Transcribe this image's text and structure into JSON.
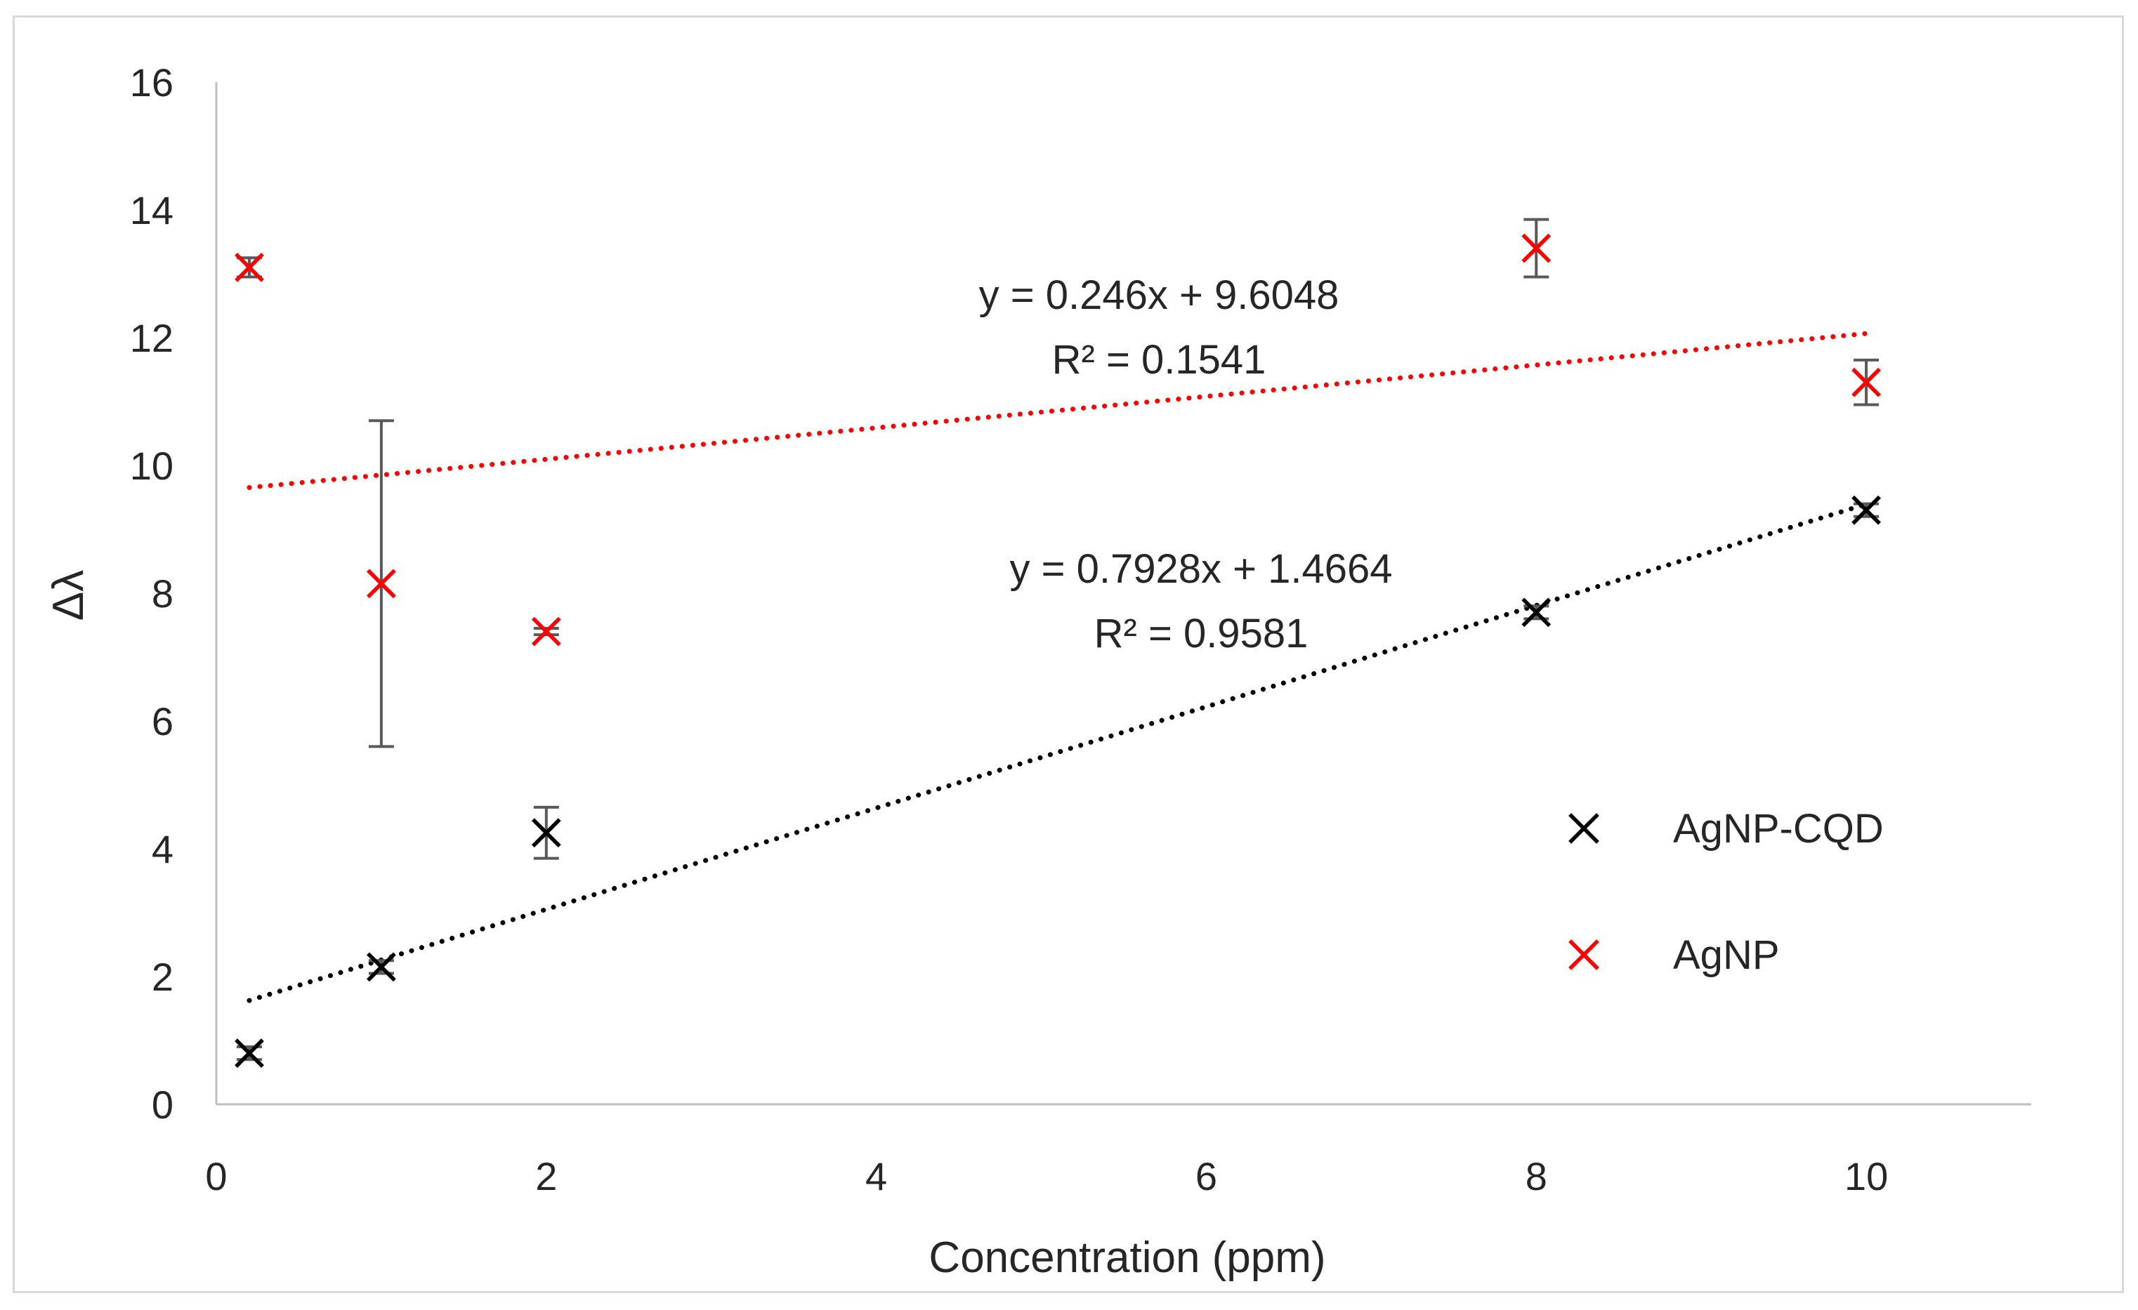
{
  "chart_data": {
    "type": "scatter",
    "title": "",
    "xlabel": "Concentration (ppm)",
    "ylabel": "Δλ",
    "xlim": [
      0,
      11
    ],
    "ylim": [
      0,
      16
    ],
    "xticks": [
      0,
      2,
      4,
      6,
      8,
      10
    ],
    "yticks": [
      0,
      2,
      4,
      6,
      8,
      10,
      12,
      14,
      16
    ],
    "grid": false,
    "legend_position": "right",
    "series": [
      {
        "name": "AgNP-CQD",
        "color": "#000000",
        "marker": "x",
        "points": [
          {
            "x": 0.2,
            "y": 0.8,
            "err": 0.1
          },
          {
            "x": 1,
            "y": 2.15,
            "err": 0.1
          },
          {
            "x": 2,
            "y": 4.25,
            "err": 0.4
          },
          {
            "x": 8,
            "y": 7.7,
            "err": 0.1
          },
          {
            "x": 10,
            "y": 9.3,
            "err": 0.1
          }
        ],
        "trendline": {
          "slope": 0.7928,
          "intercept": 1.4664,
          "x_from": 0.2,
          "x_to": 10,
          "equation": "y = 0.7928x + 1.4664",
          "r2": "R² = 0.9581"
        }
      },
      {
        "name": "AgNP",
        "color": "#ff0000",
        "marker": "x",
        "points": [
          {
            "x": 0.2,
            "y": 13.1,
            "err": 0.15
          },
          {
            "x": 1,
            "y": 8.15,
            "err": 2.55
          },
          {
            "x": 2,
            "y": 7.4,
            "err": 0.05
          },
          {
            "x": 8,
            "y": 13.4,
            "err": 0.45
          },
          {
            "x": 10,
            "y": 11.3,
            "err": 0.35
          }
        ],
        "trendline": {
          "slope": 0.246,
          "intercept": 9.6048,
          "x_from": 0.2,
          "x_to": 10,
          "equation": "y = 0.246x + 9.6048",
          "r2": "R² = 0.1541"
        }
      }
    ]
  }
}
